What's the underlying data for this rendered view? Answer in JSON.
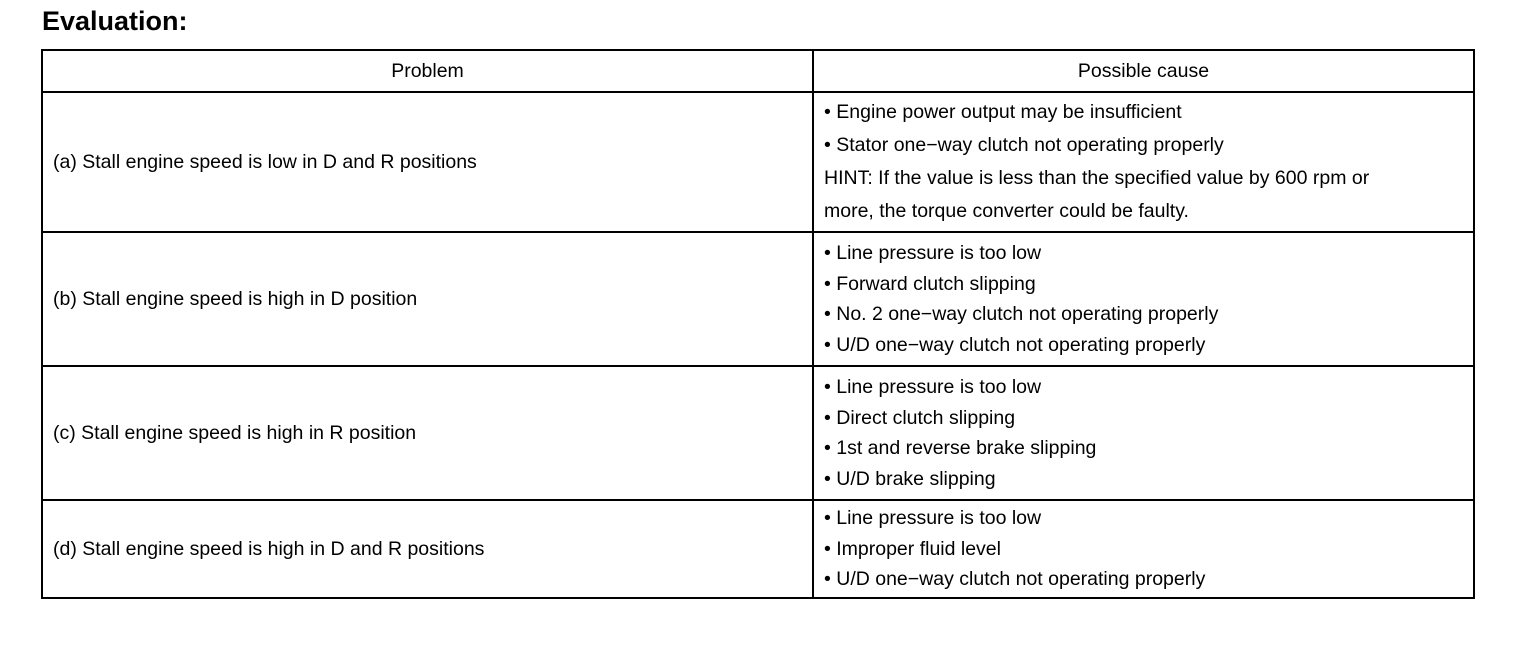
{
  "title": "Evaluation:",
  "table": {
    "headers": [
      "Problem",
      "Possible cause"
    ],
    "rows": [
      {
        "problem": "(a) Stall engine speed is low in D and R positions",
        "causes": [
          "• Engine power output may be insufficient",
          "• Stator one−way clutch not operating properly",
          "HINT: If the value is less than the specified value by 600 rpm or",
          "more, the torque converter could be faulty."
        ]
      },
      {
        "problem": "(b) Stall engine speed is high in D position",
        "causes": [
          "• Line pressure is too low",
          "• Forward clutch slipping",
          "• No. 2 one−way clutch not operating properly",
          "• U/D one−way clutch not operating properly"
        ]
      },
      {
        "problem": "(c) Stall engine speed is high in R position",
        "causes": [
          "• Line pressure is too low",
          "• Direct clutch slipping",
          "• 1st and reverse brake slipping",
          "• U/D brake slipping"
        ]
      },
      {
        "problem": "(d) Stall engine speed is high in D and R positions",
        "causes": [
          "• Line pressure is too low",
          "• Improper fluid level",
          "• U/D one−way clutch not operating properly"
        ]
      }
    ]
  }
}
